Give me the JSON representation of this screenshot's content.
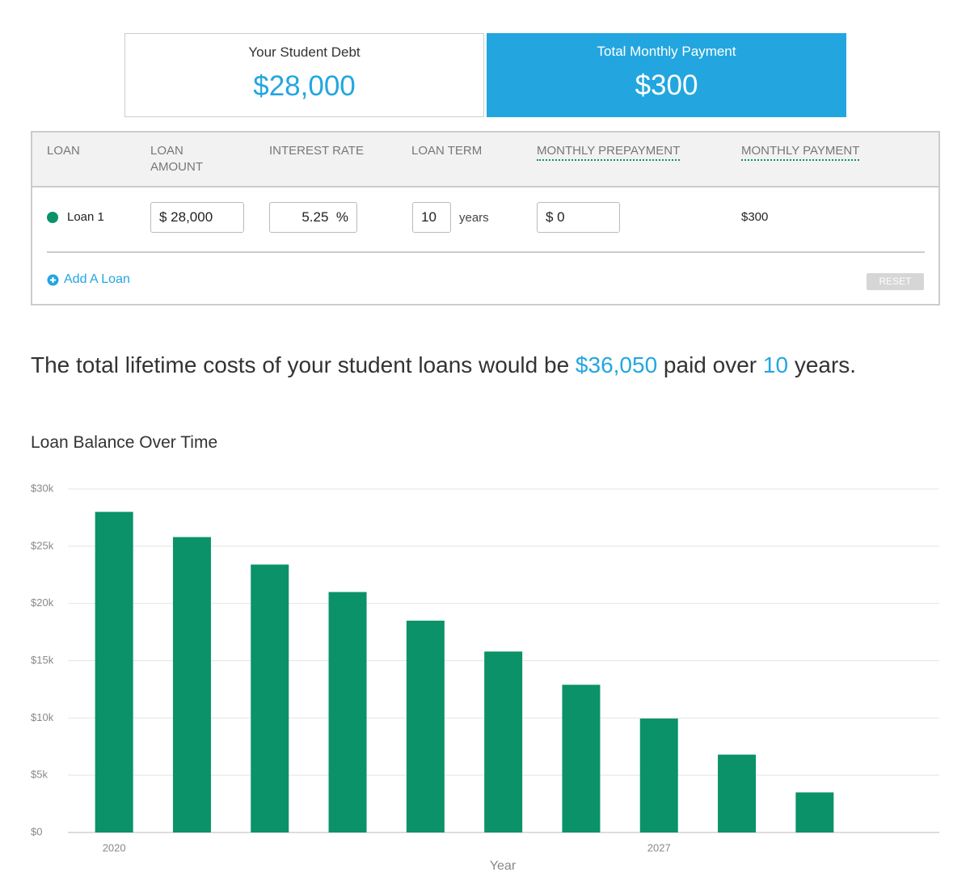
{
  "summary": {
    "debt": {
      "label": "Your Student Debt",
      "value": "$28,000"
    },
    "payment": {
      "label": "Total Monthly Payment",
      "value": "$300"
    }
  },
  "table": {
    "headers": [
      "LOAN",
      "LOAN AMOUNT",
      "INTEREST RATE",
      "LOAN TERM",
      "MONTHLY PREPAYMENT",
      "MONTHLY PAYMENT"
    ],
    "rows": [
      {
        "name": "Loan 1",
        "amount": "$ 28,000",
        "rate": "5.25",
        "rate_unit": "%",
        "term": "10",
        "term_unit": "years",
        "prepayment": "$ 0",
        "payment": "$300"
      }
    ],
    "add": "Add A Loan",
    "reset": "RESET"
  },
  "summary_sentence": {
    "before": "The total lifetime costs of your student loans would be",
    "total": "$36,050",
    "middle": "paid over",
    "years": "10",
    "after": "years."
  },
  "chart_data": {
    "type": "bar",
    "title": "Loan Balance Over Time",
    "x_label": "Year",
    "categories": [
      "2020",
      null,
      null,
      null,
      null,
      null,
      null,
      "2027",
      null,
      null,
      null
    ],
    "values": [
      28000,
      25800,
      23400,
      21000,
      18500,
      15800,
      12900,
      9950,
      6800,
      3500,
      0
    ],
    "color": "#0b9268",
    "ylim": [
      0,
      30000
    ],
    "yticks": [
      {
        "value": 0,
        "label": "$0"
      },
      {
        "value": 5000,
        "label": "$5k"
      },
      {
        "value": 10000,
        "label": "$10k"
      },
      {
        "value": 15000,
        "label": "$15k"
      },
      {
        "value": 20000,
        "label": "$20k"
      },
      {
        "value": 25000,
        "label": "$25k"
      },
      {
        "value": 30000,
        "label": "$30k"
      }
    ],
    "grid": true
  }
}
